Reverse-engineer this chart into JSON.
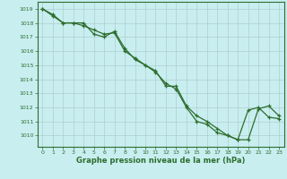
{
  "xlabel": "Graphe pression niveau de la mer (hPa)",
  "background_color": "#c8eef0",
  "grid_color": "#b0cece",
  "line_color": "#2d6e2d",
  "xlim": [
    -0.5,
    23.5
  ],
  "ylim": [
    1009.2,
    1019.5
  ],
  "yticks": [
    1010,
    1011,
    1012,
    1013,
    1014,
    1015,
    1016,
    1017,
    1018,
    1019
  ],
  "xticks": [
    0,
    1,
    2,
    3,
    4,
    5,
    6,
    7,
    8,
    9,
    10,
    11,
    12,
    13,
    14,
    15,
    16,
    17,
    18,
    19,
    20,
    21,
    22,
    23
  ],
  "series1_x": [
    0,
    1,
    2,
    3,
    4,
    5,
    6,
    7,
    8,
    9,
    10,
    11,
    12,
    13,
    14,
    15,
    16,
    17,
    18,
    19,
    20,
    21,
    22,
    23
  ],
  "series1_y": [
    1019.0,
    1018.6,
    1018.0,
    1018.0,
    1017.8,
    1017.5,
    1017.2,
    1017.3,
    1016.0,
    1015.5,
    1015.0,
    1014.5,
    1013.7,
    1013.3,
    1012.0,
    1011.0,
    1010.8,
    1010.2,
    1010.0,
    1009.7,
    1011.8,
    1012.0,
    1011.3,
    1011.2
  ],
  "series2_x": [
    0,
    1,
    2,
    3,
    4,
    5,
    6,
    7,
    8,
    9,
    10,
    11,
    12,
    13,
    14,
    15,
    16,
    17,
    18,
    19,
    20,
    21,
    22,
    23
  ],
  "series2_y": [
    1019.0,
    1018.5,
    1018.0,
    1018.0,
    1018.0,
    1017.2,
    1017.0,
    1017.4,
    1016.2,
    1015.4,
    1015.0,
    1014.6,
    1013.5,
    1013.5,
    1012.1,
    1011.4,
    1011.0,
    1010.5,
    1010.0,
    1009.7,
    1009.7,
    1011.9,
    1012.1,
    1011.4
  ]
}
